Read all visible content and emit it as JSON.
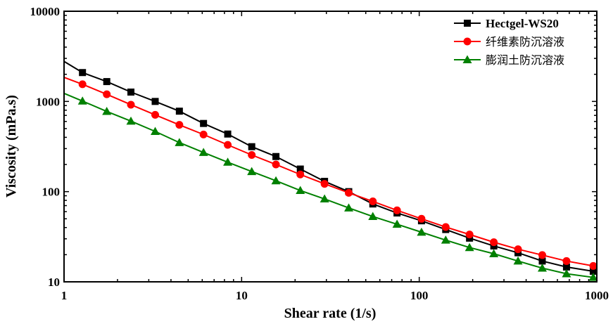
{
  "chart_data": {
    "type": "line",
    "title": "",
    "xlabel": "Shear rate (1/s)",
    "ylabel": "Viscosity (mPa.s)",
    "xscale": "log",
    "yscale": "log",
    "xlim": [
      1,
      1000
    ],
    "ylim": [
      10,
      10000
    ],
    "xticks": [
      "1",
      "10",
      "100",
      "1000"
    ],
    "yticks": [
      "10",
      "100",
      "1000",
      "10000"
    ],
    "grid": false,
    "legend_position": "top-right",
    "x": [
      1.27,
      1.74,
      2.38,
      3.26,
      4.46,
      6.1,
      8.35,
      11.4,
      15.6,
      21.4,
      29.3,
      40.1,
      54.8,
      75,
      103,
      141,
      192,
      263,
      360,
      493,
      675,
      955
    ],
    "series": [
      {
        "name": "Hectgel-WS20",
        "color": "#000000",
        "marker": "square",
        "start_value": 2780,
        "values": [
          2090,
          1660,
          1270,
          1000,
          780,
          570,
          435,
          315,
          245,
          178,
          130,
          100,
          73,
          58,
          47.5,
          38,
          30.5,
          25,
          21,
          17,
          14.6,
          13.1
        ]
      },
      {
        "name": "纤维素防沉溶液",
        "color": "#ff0000",
        "marker": "circle",
        "start_value": 1850,
        "values": [
          1550,
          1200,
          920,
          710,
          550,
          430,
          330,
          255,
          200,
          155,
          122,
          97,
          78,
          62,
          50,
          40.5,
          33.5,
          27.5,
          23,
          19.8,
          17,
          15
        ]
      },
      {
        "name": "膨润土防沉溶液",
        "color": "#008000",
        "marker": "triangle",
        "start_value": 1230,
        "values": [
          1010,
          775,
          605,
          465,
          350,
          272,
          212,
          167,
          132,
          103,
          83,
          66,
          53,
          43.5,
          35.5,
          29,
          24,
          20.5,
          17,
          14.2,
          12.3,
          11.2
        ]
      }
    ]
  }
}
